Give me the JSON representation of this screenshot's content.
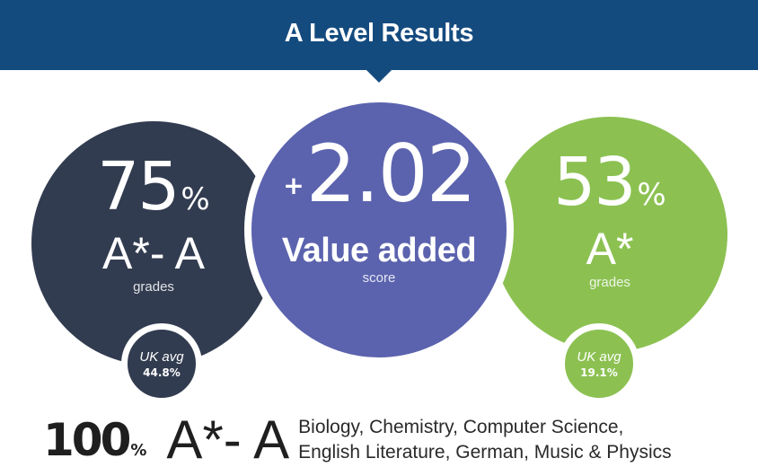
{
  "header": {
    "title": "A Level Results"
  },
  "colors": {
    "banner": "#144b7f",
    "left_circle": "#323c50",
    "middle_circle": "#5b63ae",
    "right_circle": "#8cc152"
  },
  "stats": {
    "left": {
      "value": "75",
      "unit": "%",
      "grade": "A*- A",
      "caption": "grades",
      "uk_avg_label": "UK avg",
      "uk_avg_value": "44.8%"
    },
    "middle": {
      "sign": "+",
      "value": "2.02",
      "title": "Value added",
      "caption": "score"
    },
    "right": {
      "value": "53",
      "unit": "%",
      "grade": "A*",
      "caption": "grades",
      "uk_avg_label": "UK avg",
      "uk_avg_value": "19.1%"
    }
  },
  "footer": {
    "value": "100",
    "unit": "%",
    "grade": "A*- A",
    "subjects_line1": "Biology, Chemistry, Computer Science,",
    "subjects_line2": "English Literature, German, Music & Physics"
  }
}
